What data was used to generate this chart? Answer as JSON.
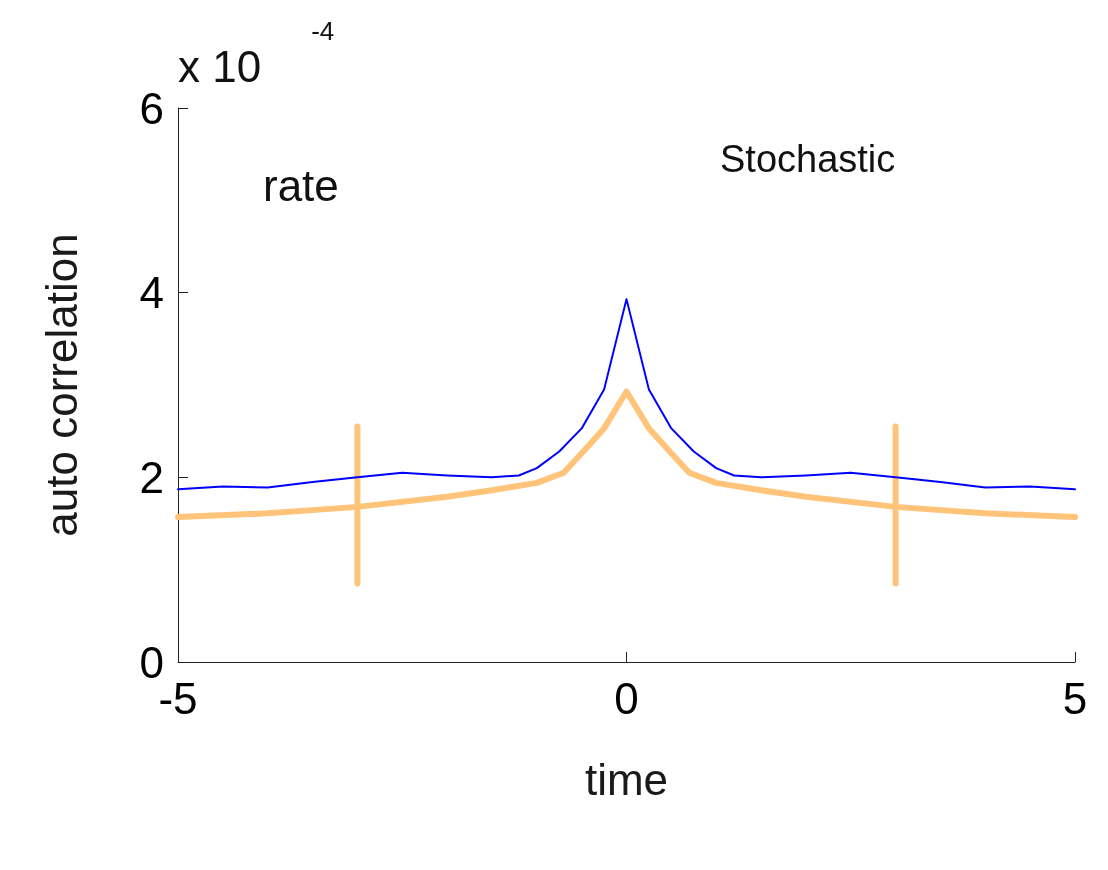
{
  "chart_data": {
    "type": "line",
    "xlabel": "time",
    "ylabel": "auto correlation",
    "annotations": [
      "x 10$^{-4}$",
      "rate",
      "Stochastic"
    ],
    "xlim": [
      -5,
      5
    ],
    "xticks": [
      -5,
      0,
      5
    ],
    "ylim": [
      0,
      6
    ],
    "yticks": [
      0,
      2,
      4,
      6
    ],
    "grid": false,
    "marker": "none",
    "line_style": "solid",
    "series": [
      {
        "color": "#0000ff",
        "x": [
          -5,
          -4.5,
          -4,
          -3.5,
          -3,
          -2.5,
          -2,
          -1.5,
          -1.2,
          -1,
          -0.75,
          -0.5,
          -0.25,
          0,
          0.25,
          0.5,
          0.75,
          1,
          1.2,
          1.5,
          2,
          2.5,
          3,
          3.5,
          4,
          4.5,
          5
        ],
        "values": [
          1.87,
          1.9,
          1.89,
          1.95,
          2.0,
          2.05,
          2.02,
          2.0,
          2.02,
          2.1,
          2.28,
          2.53,
          2.95,
          3.93,
          2.95,
          2.53,
          2.28,
          2.1,
          2.02,
          2.0,
          2.02,
          2.05,
          2.0,
          1.95,
          1.89,
          1.9,
          1.87
        ]
      },
      {
        "color": "#ffc47a",
        "x": [
          -5,
          -4,
          -3,
          -2,
          -1.5,
          -1,
          -0.7,
          -0.5,
          -0.25,
          0,
          0.25,
          0.5,
          0.7,
          1,
          1.5,
          2,
          3,
          4,
          5
        ],
        "values": [
          1.57,
          1.61,
          1.68,
          1.79,
          1.86,
          1.94,
          2.05,
          2.26,
          2.53,
          2.93,
          2.53,
          2.26,
          2.05,
          1.94,
          1.86,
          1.79,
          1.68,
          1.61,
          1.57
        ]
      },
      {
        "color": "#ffc47a",
        "x": [
          -3,
          -3
        ],
        "values": [
          0.85,
          2.55
        ]
      },
      {
        "color": "#ffc47a",
        "x": [
          3,
          3
        ],
        "values": [
          0.85,
          2.55
        ]
      }
    ]
  }
}
